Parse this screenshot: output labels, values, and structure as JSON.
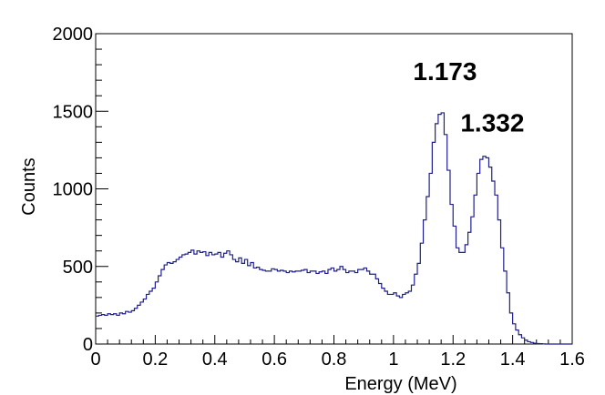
{
  "chart_data": {
    "type": "histogram",
    "title": "",
    "xlabel": "Energy (MeV)",
    "ylabel": "Counts",
    "xlim": [
      0,
      1.6
    ],
    "ylim": [
      0,
      2000
    ],
    "x_ticks": [
      {
        "value": 0,
        "label": "0"
      },
      {
        "value": 0.2,
        "label": "0.2"
      },
      {
        "value": 0.4,
        "label": "0.4"
      },
      {
        "value": 0.6,
        "label": "0.6"
      },
      {
        "value": 0.8,
        "label": "0.8"
      },
      {
        "value": 1.0,
        "label": "1"
      },
      {
        "value": 1.2,
        "label": "1.2"
      },
      {
        "value": 1.4,
        "label": "1.4"
      },
      {
        "value": 1.6,
        "label": "1.6"
      }
    ],
    "y_ticks": [
      {
        "value": 0,
        "label": "0"
      },
      {
        "value": 500,
        "label": "500"
      },
      {
        "value": 1000,
        "label": "1000"
      },
      {
        "value": 1500,
        "label": "1500"
      },
      {
        "value": 2000,
        "label": "2000"
      }
    ],
    "grid": false,
    "line_color": "#1f1f8f",
    "bin_edges_start": 0.0,
    "bin_width": 0.01,
    "counts": [
      180,
      185,
      190,
      185,
      195,
      190,
      195,
      185,
      200,
      195,
      210,
      205,
      215,
      230,
      250,
      270,
      290,
      320,
      340,
      360,
      400,
      440,
      480,
      510,
      525,
      520,
      530,
      545,
      560,
      575,
      580,
      590,
      605,
      580,
      600,
      590,
      595,
      570,
      590,
      575,
      580,
      590,
      560,
      585,
      600,
      575,
      545,
      530,
      555,
      520,
      545,
      505,
      525,
      490,
      495,
      480,
      475,
      470,
      470,
      485,
      480,
      470,
      475,
      470,
      460,
      470,
      465,
      470,
      470,
      475,
      480,
      460,
      470,
      470,
      455,
      465,
      470,
      455,
      480,
      490,
      470,
      480,
      500,
      480,
      460,
      470,
      470,
      460,
      480,
      480,
      490,
      470,
      450,
      450,
      420,
      390,
      360,
      340,
      320,
      320,
      330,
      310,
      300,
      320,
      330,
      340,
      380,
      450,
      520,
      650,
      800,
      950,
      1100,
      1300,
      1420,
      1480,
      1490,
      1350,
      1120,
      900,
      760,
      620,
      590,
      590,
      640,
      720,
      820,
      960,
      1100,
      1190,
      1210,
      1200,
      1140,
      1050,
      960,
      800,
      620,
      470,
      330,
      200,
      130,
      90,
      60,
      40,
      25,
      15,
      10,
      5,
      3,
      2,
      1,
      0,
      0,
      0,
      0,
      0,
      0,
      0,
      0,
      0
    ],
    "annotations": [
      {
        "text": "1.173",
        "x": 1.173,
        "y": 1700
      },
      {
        "text": "1.332",
        "x": 1.332,
        "y": 1370
      }
    ]
  }
}
